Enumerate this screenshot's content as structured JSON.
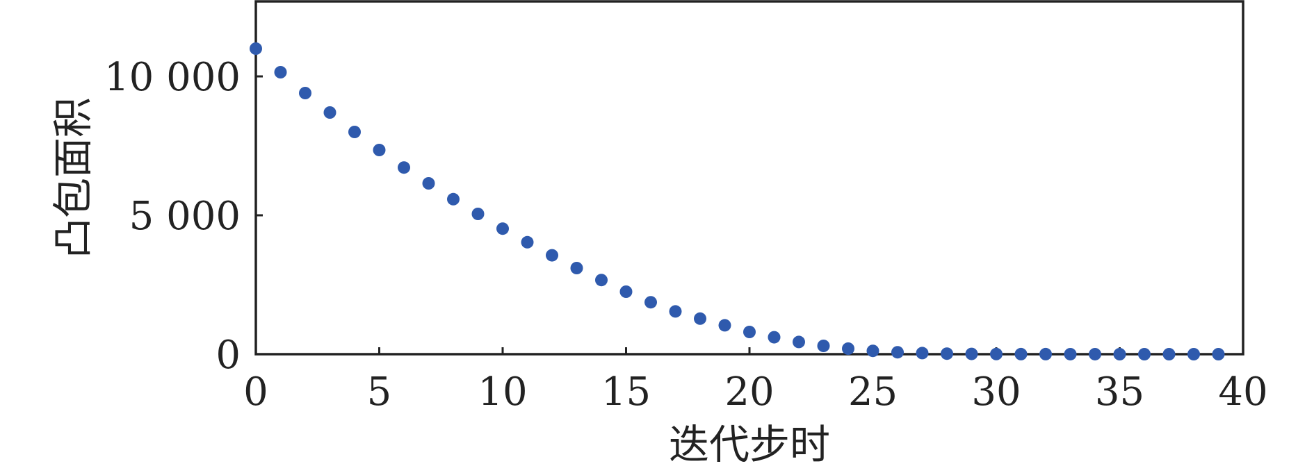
{
  "chart_data": {
    "type": "scatter",
    "title": "",
    "xlabel": "迭代步时",
    "ylabel": "凸包面积",
    "xlim": [
      0,
      40
    ],
    "ylim": [
      0,
      12700
    ],
    "xticks": [
      0,
      5,
      10,
      15,
      20,
      25,
      30,
      35,
      40
    ],
    "xtick_labels": [
      "0",
      "5",
      "10",
      "15",
      "20",
      "25",
      "30",
      "35",
      "40"
    ],
    "yticks": [
      0,
      5000,
      10000
    ],
    "ytick_labels": [
      "0",
      "5 000",
      "10 000"
    ],
    "grid": false,
    "legend": "none",
    "series": [
      {
        "color": "#2F5AAD",
        "points": [
          {
            "x": 0,
            "y": 11000
          },
          {
            "x": 1,
            "y": 10150
          },
          {
            "x": 2,
            "y": 9400
          },
          {
            "x": 3,
            "y": 8700
          },
          {
            "x": 4,
            "y": 8000
          },
          {
            "x": 5,
            "y": 7350
          },
          {
            "x": 6,
            "y": 6720
          },
          {
            "x": 7,
            "y": 6150
          },
          {
            "x": 8,
            "y": 5580
          },
          {
            "x": 9,
            "y": 5050
          },
          {
            "x": 10,
            "y": 4520
          },
          {
            "x": 11,
            "y": 4030
          },
          {
            "x": 12,
            "y": 3560
          },
          {
            "x": 13,
            "y": 3100
          },
          {
            "x": 14,
            "y": 2670
          },
          {
            "x": 15,
            "y": 2250
          },
          {
            "x": 16,
            "y": 1870
          },
          {
            "x": 17,
            "y": 1540
          },
          {
            "x": 18,
            "y": 1280
          },
          {
            "x": 19,
            "y": 1040
          },
          {
            "x": 20,
            "y": 800
          },
          {
            "x": 21,
            "y": 610
          },
          {
            "x": 22,
            "y": 440
          },
          {
            "x": 23,
            "y": 300
          },
          {
            "x": 24,
            "y": 200
          },
          {
            "x": 25,
            "y": 120
          },
          {
            "x": 26,
            "y": 70
          },
          {
            "x": 27,
            "y": 40
          },
          {
            "x": 28,
            "y": 20
          },
          {
            "x": 29,
            "y": 10
          },
          {
            "x": 30,
            "y": 5
          },
          {
            "x": 31,
            "y": 3
          },
          {
            "x": 32,
            "y": 2
          },
          {
            "x": 33,
            "y": 1
          },
          {
            "x": 34,
            "y": 1
          },
          {
            "x": 35,
            "y": 0
          },
          {
            "x": 36,
            "y": 0
          },
          {
            "x": 37,
            "y": 0
          },
          {
            "x": 38,
            "y": 0
          },
          {
            "x": 39,
            "y": 0
          }
        ]
      }
    ]
  }
}
